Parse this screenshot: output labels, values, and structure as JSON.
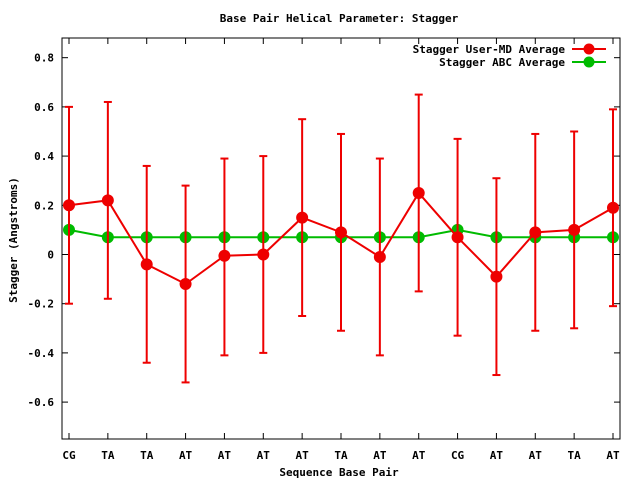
{
  "chart_data": {
    "type": "line",
    "title": "Base Pair Helical Parameter: Stagger",
    "xlabel": "Sequence Base Pair",
    "ylabel": "Stagger (Angstroms)",
    "categories": [
      "CG",
      "TA",
      "TA",
      "AT",
      "AT",
      "AT",
      "AT",
      "TA",
      "AT",
      "AT",
      "CG",
      "AT",
      "AT",
      "TA",
      "AT"
    ],
    "ylim": [
      -0.75,
      0.88
    ],
    "yticks": [
      -0.6,
      -0.4,
      -0.2,
      0,
      0.2,
      0.4,
      0.6,
      0.8
    ],
    "ytick_labels": [
      "-0.6",
      "-0.4",
      "-0.2",
      "0",
      "0.2",
      "0.4",
      "0.6",
      "0.8"
    ],
    "grid": false,
    "legend_position": "top-right",
    "series": [
      {
        "name": "Stagger User-MD Average",
        "color": "#ee0000",
        "values": [
          0.2,
          0.22,
          -0.04,
          -0.12,
          -0.005,
          0.0,
          0.15,
          0.09,
          -0.01,
          0.25,
          0.07,
          -0.09,
          0.09,
          0.1,
          0.19
        ],
        "error_low": [
          -0.2,
          -0.18,
          -0.44,
          -0.52,
          -0.41,
          -0.4,
          -0.25,
          -0.31,
          -0.41,
          -0.15,
          -0.33,
          -0.49,
          -0.31,
          -0.3,
          -0.21
        ],
        "error_high": [
          0.6,
          0.62,
          0.36,
          0.28,
          0.39,
          0.4,
          0.55,
          0.49,
          0.39,
          0.65,
          0.47,
          0.31,
          0.49,
          0.5,
          0.59
        ]
      },
      {
        "name": "Stagger ABC Average",
        "color": "#00bb00",
        "values": [
          0.1,
          0.07,
          0.07,
          0.07,
          0.07,
          0.07,
          0.07,
          0.07,
          0.07,
          0.07,
          0.1,
          0.07,
          0.07,
          0.07,
          0.07
        ]
      }
    ]
  }
}
